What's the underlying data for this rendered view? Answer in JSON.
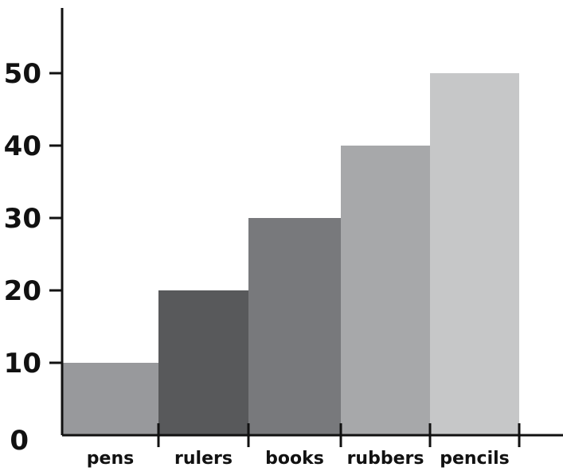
{
  "chart_data": {
    "type": "bar",
    "categories": [
      "pens",
      "rulers",
      "books",
      "rubbers",
      "pencils"
    ],
    "values": [
      10,
      20,
      30,
      40,
      50
    ],
    "colors": [
      "#98999c",
      "#58595b",
      "#78797c",
      "#a7a8aa",
      "#c6c7c8"
    ],
    "ylim": [
      0,
      58
    ],
    "yticks": [
      "0",
      "10",
      "20",
      "30",
      "40",
      "50"
    ],
    "grid": false,
    "title": "",
    "xlabel": "",
    "ylabel": ""
  }
}
